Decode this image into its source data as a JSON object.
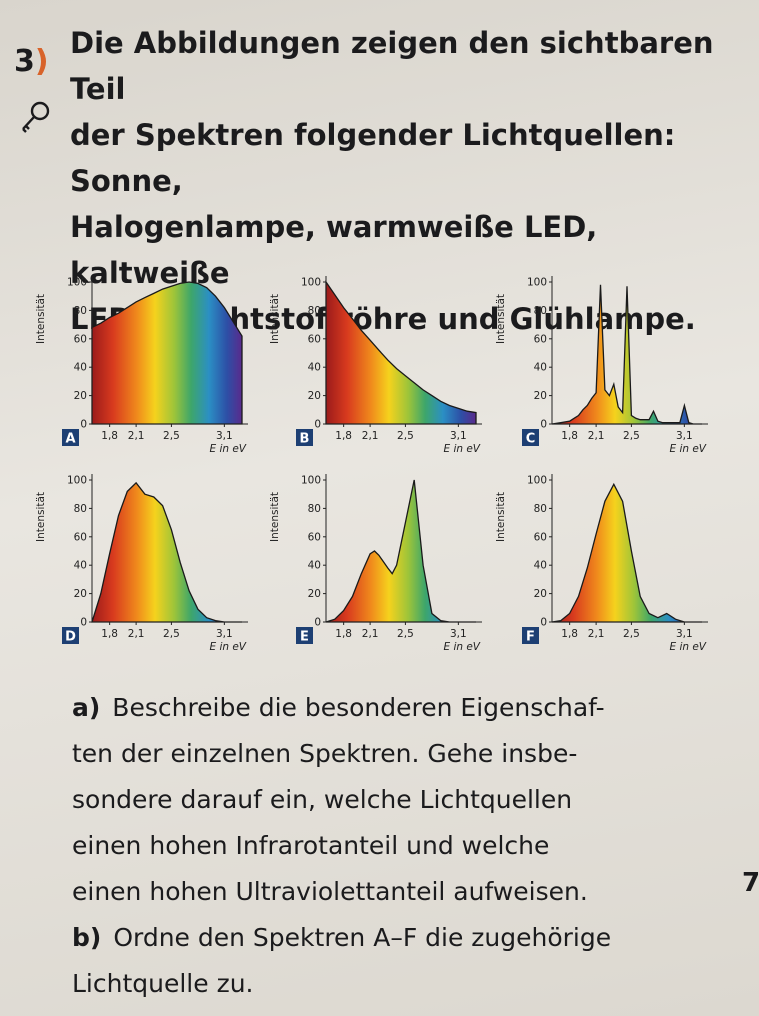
{
  "task": {
    "number": "3",
    "bracket": ")"
  },
  "intro_lines": [
    "Die Abbildungen zeigen den sichtbaren Teil",
    "der Spektren folgender Lichtquellen: Sonne,",
    "Halogenlampe, warmweiße LED, kaltweiße",
    "LED, Leuchtstoffröhre und Glühlampe."
  ],
  "icons": {
    "key": "key-icon"
  },
  "chart_data": [
    {
      "id": "A",
      "type": "area",
      "ylabel": "Intensität",
      "xlabel": "E in eV",
      "yticks": [
        0,
        20,
        40,
        60,
        80,
        100
      ],
      "xticks": [
        "1,8",
        "2,1",
        "2,5",
        "3,1"
      ],
      "x": [
        1.6,
        1.7,
        1.8,
        1.9,
        2.0,
        2.1,
        2.2,
        2.3,
        2.4,
        2.5,
        2.6,
        2.7,
        2.8,
        2.9,
        3.0,
        3.1,
        3.2,
        3.3
      ],
      "y": [
        68,
        71,
        75,
        78,
        82,
        86,
        89,
        92,
        95,
        97,
        99,
        100,
        99,
        96,
        90,
        82,
        72,
        62
      ]
    },
    {
      "id": "B",
      "type": "area",
      "ylabel": "Intensität",
      "xlabel": "E in eV",
      "yticks": [
        0,
        20,
        40,
        60,
        80,
        100
      ],
      "xticks": [
        "1,8",
        "2,1",
        "2,5",
        "3,1"
      ],
      "x": [
        1.6,
        1.7,
        1.8,
        1.9,
        2.0,
        2.1,
        2.2,
        2.3,
        2.4,
        2.5,
        2.6,
        2.7,
        2.8,
        2.9,
        3.0,
        3.1,
        3.2,
        3.3
      ],
      "y": [
        100,
        91,
        82,
        74,
        66,
        59,
        52,
        45,
        39,
        34,
        29,
        24,
        20,
        16,
        13,
        11,
        9,
        8
      ]
    },
    {
      "id": "C",
      "type": "area",
      "ylabel": "Intensität",
      "xlabel": "E in eV",
      "yticks": [
        0,
        20,
        40,
        60,
        80,
        100
      ],
      "xticks": [
        "1,8",
        "2,1",
        "2,5",
        "3,1"
      ],
      "x": [
        1.6,
        1.7,
        1.8,
        1.85,
        1.9,
        1.95,
        2.0,
        2.05,
        2.1,
        2.15,
        2.2,
        2.25,
        2.3,
        2.35,
        2.4,
        2.45,
        2.5,
        2.55,
        2.6,
        2.7,
        2.75,
        2.8,
        2.85,
        2.9,
        3.0,
        3.05,
        3.1,
        3.15,
        3.2,
        3.3
      ],
      "y": [
        0,
        1,
        2,
        4,
        6,
        10,
        13,
        18,
        22,
        98,
        24,
        20,
        28,
        12,
        8,
        97,
        6,
        4,
        3,
        3,
        9,
        2,
        1,
        1,
        1,
        1,
        13,
        1,
        0,
        0
      ]
    },
    {
      "id": "D",
      "type": "area",
      "ylabel": "Intensität",
      "xlabel": "E in eV",
      "yticks": [
        0,
        20,
        40,
        60,
        80,
        100
      ],
      "xticks": [
        "1,8",
        "2,1",
        "2,5",
        "3,1"
      ],
      "x": [
        1.6,
        1.7,
        1.8,
        1.9,
        2.0,
        2.05,
        2.1,
        2.2,
        2.3,
        2.4,
        2.5,
        2.6,
        2.7,
        2.8,
        2.9,
        3.0,
        3.1,
        3.2,
        3.3
      ],
      "y": [
        0,
        20,
        48,
        75,
        92,
        95,
        98,
        90,
        88,
        82,
        65,
        42,
        22,
        9,
        3,
        1,
        0,
        0,
        0
      ]
    },
    {
      "id": "E",
      "type": "area",
      "ylabel": "Intensität",
      "xlabel": "E in eV",
      "yticks": [
        0,
        20,
        40,
        60,
        80,
        100
      ],
      "xticks": [
        "1,8",
        "2,1",
        "2,5",
        "3,1"
      ],
      "x": [
        1.6,
        1.7,
        1.8,
        1.9,
        2.0,
        2.1,
        2.15,
        2.2,
        2.3,
        2.35,
        2.4,
        2.5,
        2.6,
        2.7,
        2.8,
        2.9,
        3.0,
        3.1,
        3.2,
        3.3
      ],
      "y": [
        0,
        2,
        8,
        18,
        34,
        48,
        50,
        47,
        38,
        34,
        40,
        70,
        100,
        40,
        6,
        1,
        0,
        0,
        0,
        0
      ]
    },
    {
      "id": "F",
      "type": "area",
      "ylabel": "Intensität",
      "xlabel": "E in eV",
      "yticks": [
        0,
        20,
        40,
        60,
        80,
        100
      ],
      "xticks": [
        "1,8",
        "2,1",
        "2,5",
        "3,1"
      ],
      "x": [
        1.6,
        1.7,
        1.8,
        1.9,
        2.0,
        2.1,
        2.2,
        2.3,
        2.4,
        2.5,
        2.6,
        2.7,
        2.8,
        2.9,
        3.0,
        3.1,
        3.2,
        3.3
      ],
      "y": [
        0,
        1,
        6,
        18,
        38,
        62,
        85,
        97,
        85,
        50,
        18,
        6,
        3,
        6,
        2,
        0,
        0,
        0
      ]
    }
  ],
  "questions": {
    "a": {
      "label": "a)",
      "lines": [
        "Beschreibe die besonderen Eigenschaf-",
        "ten der einzelnen Spektren. Gehe insbe-",
        "sondere darauf ein, welche Lichtquellen",
        "einen hohen Infrarotanteil und welche",
        "einen hohen Ultraviolettanteil aufweisen."
      ]
    },
    "b": {
      "label": "b)",
      "lines": [
        "Ordne den Spektren A–F die zugehörige",
        "Lichtquelle zu."
      ]
    }
  },
  "margin_mark": "7"
}
